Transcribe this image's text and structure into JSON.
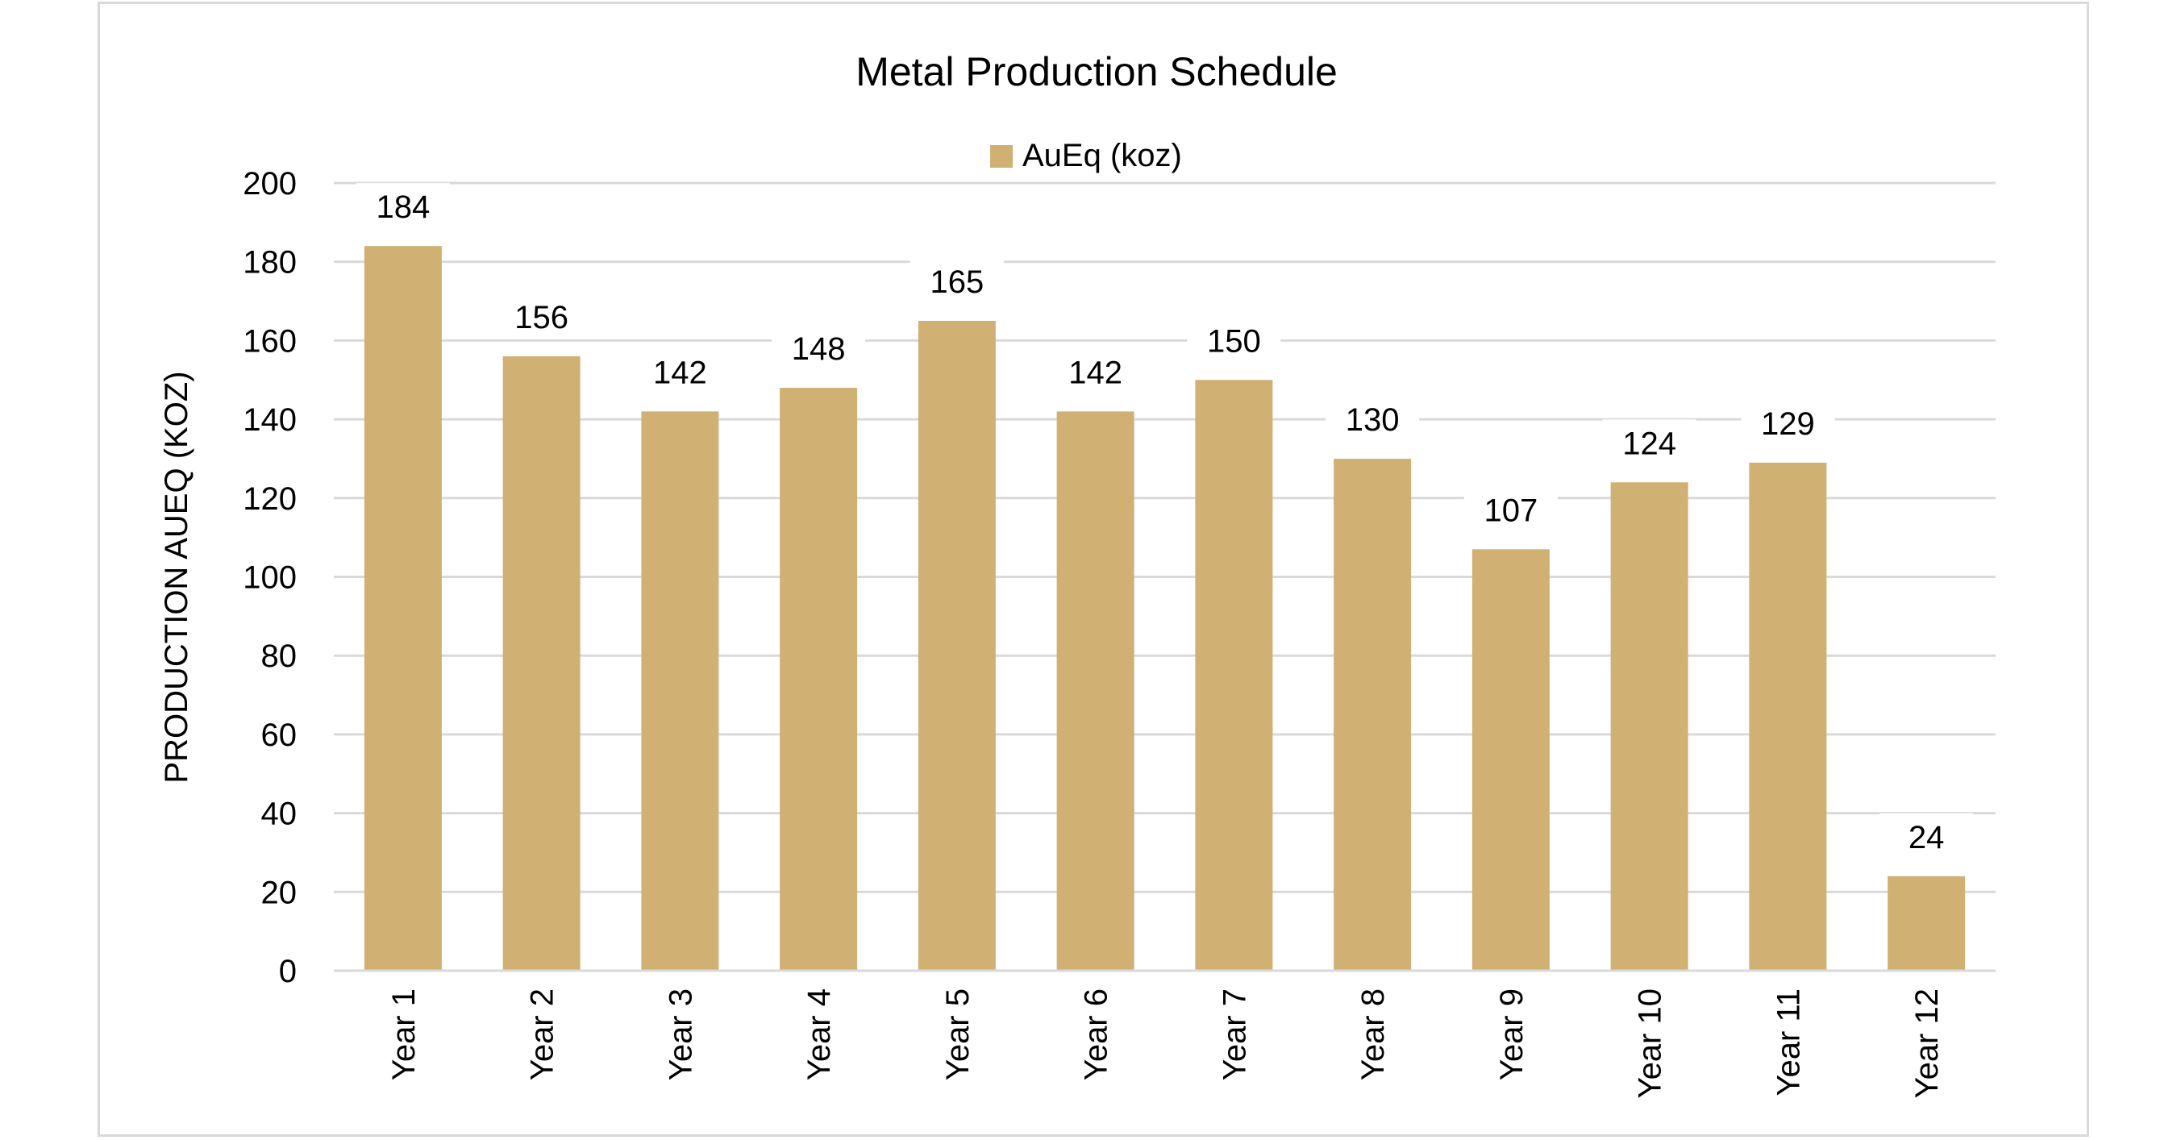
{
  "chart_data": {
    "type": "bar",
    "title": "Metal Production Schedule",
    "legend": {
      "entries": [
        "AuEq (koz)"
      ],
      "placement": "top"
    },
    "xlabel": "",
    "ylabel": "PRODUCTION AUEQ (KOZ)",
    "categories": [
      "Year 1",
      "Year 2",
      "Year 3",
      "Year 4",
      "Year 5",
      "Year 6",
      "Year 7",
      "Year 8",
      "Year 9",
      "Year 10",
      "Year 11",
      "Year 12"
    ],
    "series": [
      {
        "name": "AuEq (koz)",
        "values": [
          184,
          156,
          142,
          148,
          165,
          142,
          150,
          130,
          107,
          124,
          129,
          24
        ],
        "color": "#D1B073"
      }
    ],
    "ylim": [
      0,
      200
    ],
    "yticks": [
      0,
      20,
      40,
      60,
      80,
      100,
      120,
      140,
      160,
      180,
      200
    ],
    "grid": true,
    "gridline_color": "#D9D9D9"
  }
}
